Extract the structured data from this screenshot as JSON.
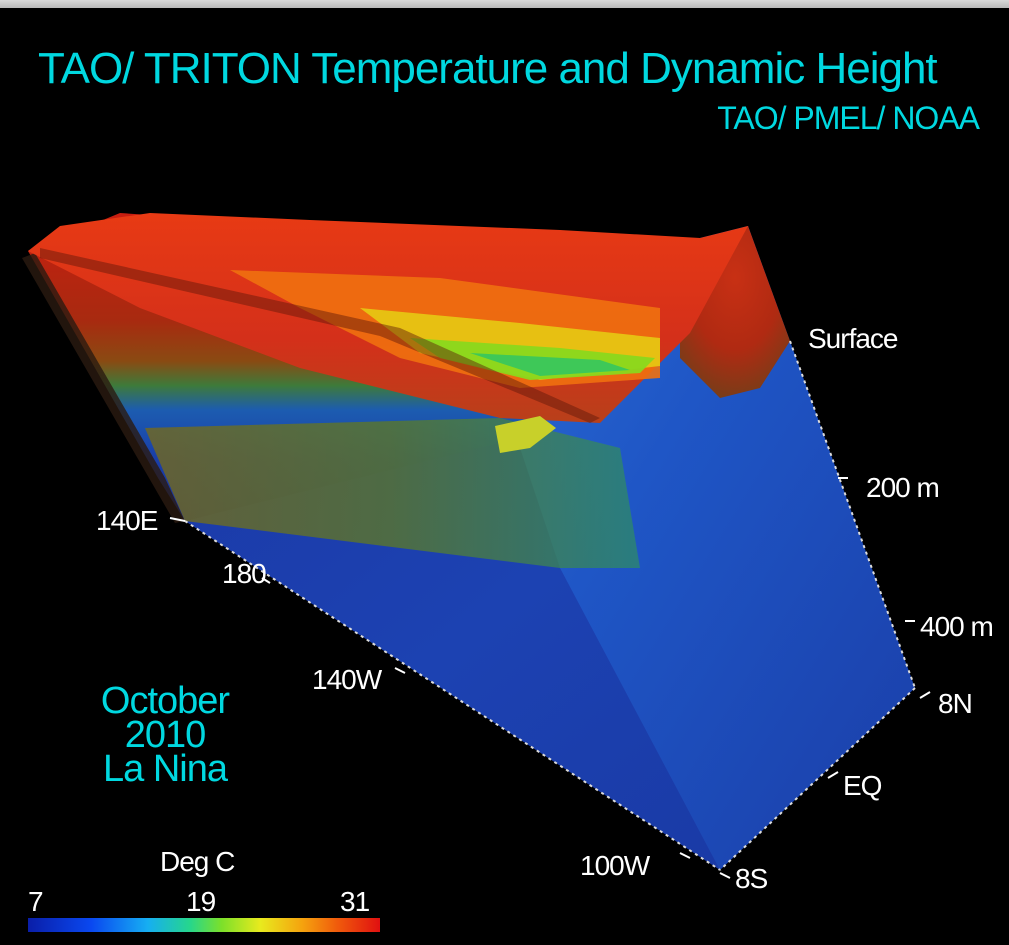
{
  "title": "TAO/ TRITON Temperature and Dynamic Height",
  "credit": "TAO/ PMEL/ NOAA",
  "longitude_labels": [
    "140E",
    "180",
    "140W",
    "100W"
  ],
  "depth_labels": [
    "Surface",
    "200 m",
    "400 m"
  ],
  "latitude_labels": [
    "8N",
    "EQ",
    "8S"
  ],
  "caption": {
    "line1": "October",
    "line2": "2010",
    "line3": "La Nina"
  },
  "legend": {
    "title": "Deg C",
    "min": "7",
    "mid": "19",
    "max": "31",
    "colors": [
      "#0a1ea8",
      "#0a48f0",
      "#16aef2",
      "#26d68c",
      "#7ce02a",
      "#e8ea1e",
      "#f5a20e",
      "#f05a0c",
      "#e01010"
    ]
  }
}
